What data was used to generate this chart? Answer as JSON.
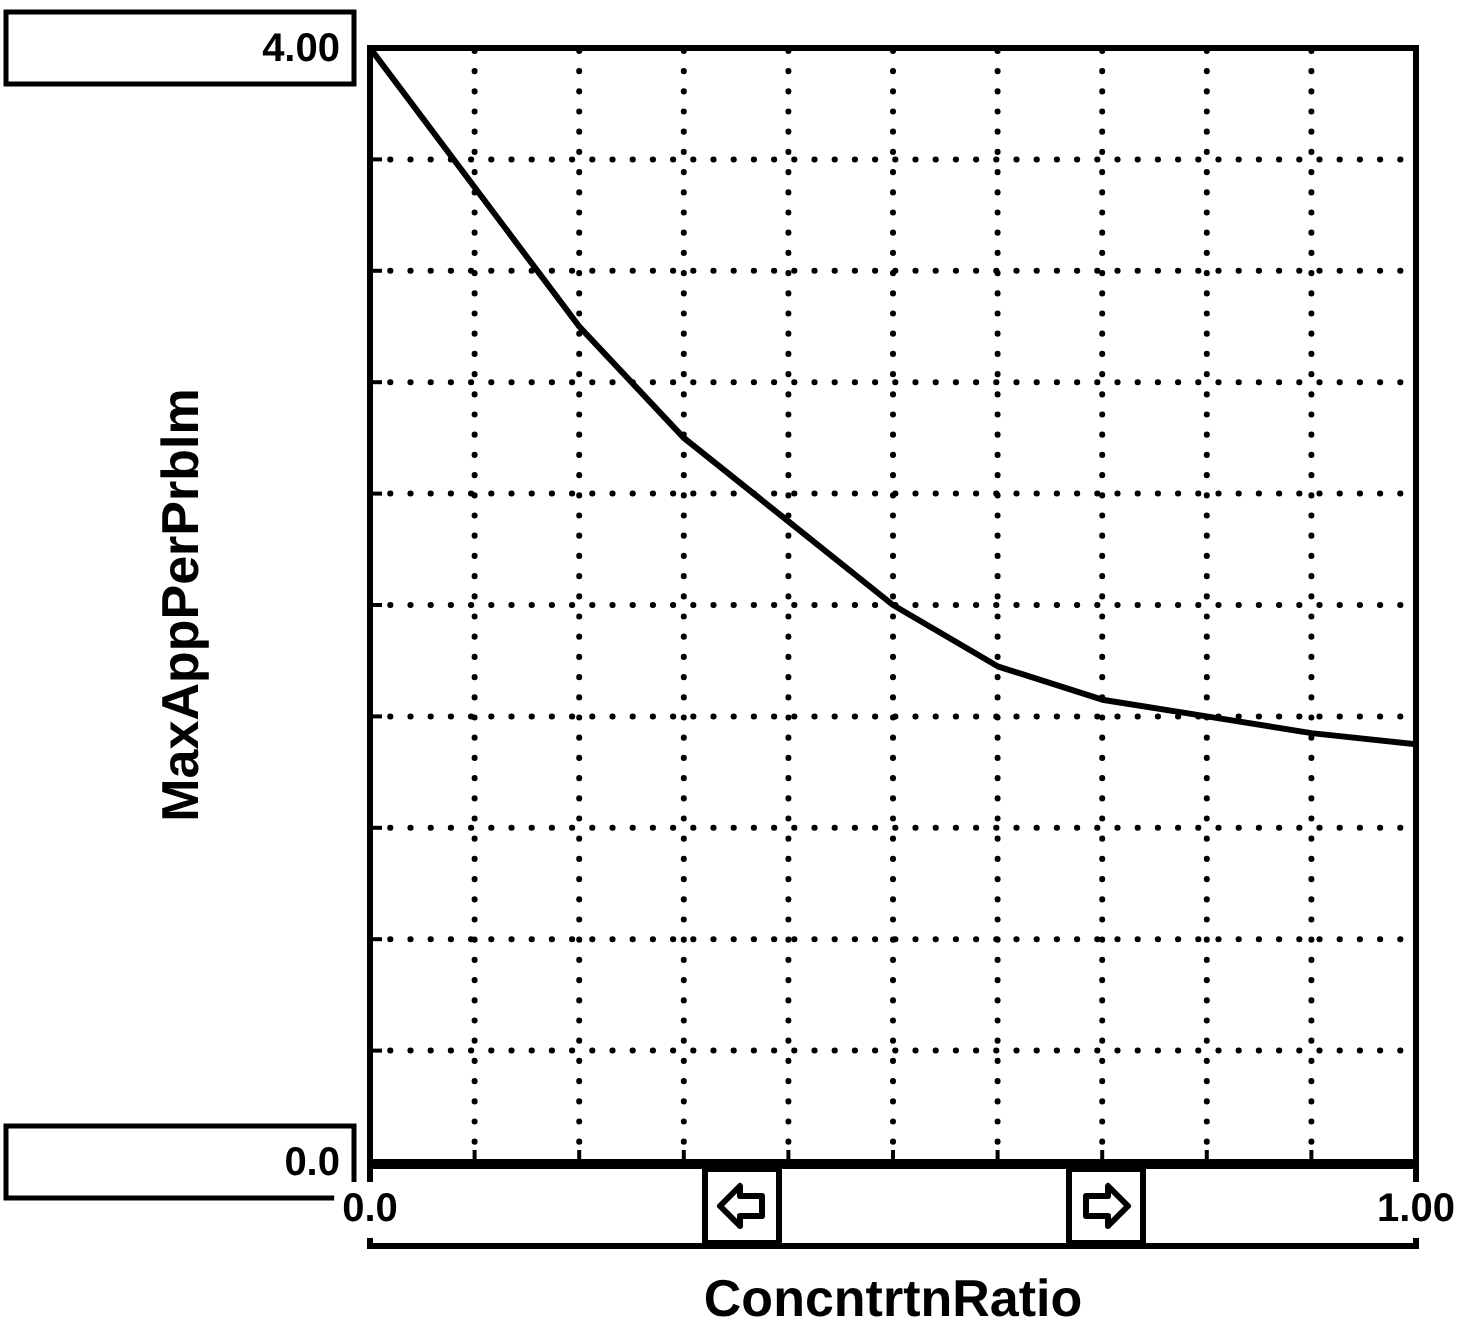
{
  "chart_data": {
    "type": "line",
    "xlabel": "ConcntrtnRatio",
    "ylabel": "MaxAppPerPrblm",
    "x": [
      0,
      0.1,
      0.2,
      0.3,
      0.4,
      0.5,
      0.6,
      0.7,
      0.8,
      0.9,
      1
    ],
    "series": [
      {
        "color": "#000000",
        "values": [
          4.0,
          3.5,
          3.0,
          2.6,
          2.3,
          2.0,
          1.78,
          1.66,
          1.6,
          1.54,
          1.5
        ]
      }
    ],
    "xlim": [
      0,
      1
    ],
    "ylim": [
      0,
      4
    ],
    "xticks": [
      {
        "value": 0,
        "label": "0.0"
      },
      {
        "value": 0.1,
        "label": null
      },
      {
        "value": 0.2,
        "label": null
      },
      {
        "value": 0.3,
        "label": null
      },
      {
        "value": 0.4,
        "label": null
      },
      {
        "value": 0.5,
        "label": null
      },
      {
        "value": 0.6,
        "label": null
      },
      {
        "value": 0.7,
        "label": null
      },
      {
        "value": 0.8,
        "label": null
      },
      {
        "value": 0.9,
        "label": null
      },
      {
        "value": 1,
        "label": "1.00"
      }
    ],
    "yticks": [
      {
        "value": 0,
        "label": "0.0"
      },
      {
        "value": 0.4,
        "label": null
      },
      {
        "value": 0.8,
        "label": null
      },
      {
        "value": 1.2,
        "label": null
      },
      {
        "value": 1.6,
        "label": null
      },
      {
        "value": 2,
        "label": null
      },
      {
        "value": 2.4,
        "label": null
      },
      {
        "value": 2.8,
        "label": null
      },
      {
        "value": 3.2,
        "label": null
      },
      {
        "value": 3.6,
        "label": null
      },
      {
        "value": 4,
        "label": "4.00"
      }
    ],
    "grid": true,
    "legend": false,
    "marker": "none",
    "line_style": "solid"
  }
}
